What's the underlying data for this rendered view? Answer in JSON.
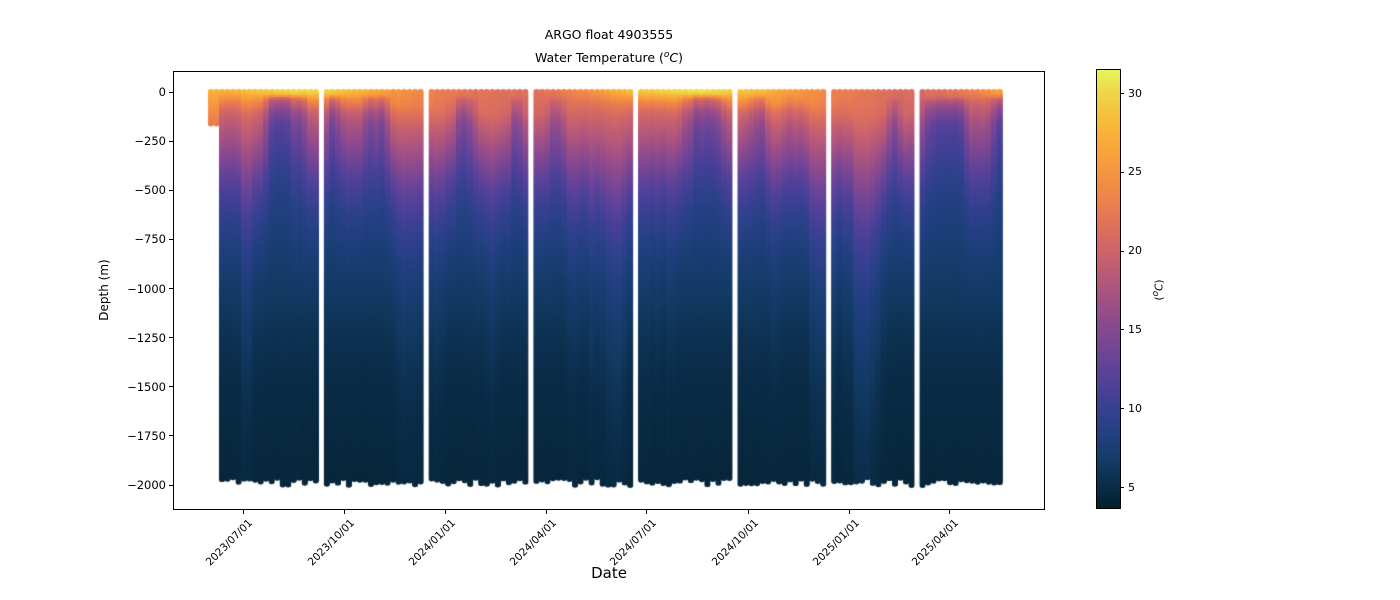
{
  "figure": {
    "title_line1": "ARGO float 4903555",
    "title_line2_prefix": "Water Temperature (",
    "title_line2_sup": "o",
    "title_line2_char": "C",
    "title_line2_suffix": ")",
    "colorbar_label_prefix": "(",
    "colorbar_label_sup": "o",
    "colorbar_label_char": "C",
    "colorbar_label_suffix": ")",
    "background": "#ffffff",
    "spine_color": "#000000",
    "text_color": "#000000"
  },
  "chart_data": {
    "type": "heatmap",
    "title": "ARGO float 4903555",
    "subtitle": "Water Temperature (°C)",
    "xlabel": "Date",
    "ylabel": "Depth (m)",
    "grid": "off",
    "legend": "none",
    "ylim": [
      -2123,
      102
    ],
    "x_tick_labels": [
      "2023/07/01",
      "2023/10/01",
      "2024/01/01",
      "2024/04/01",
      "2024/07/01",
      "2024/10/01",
      "2025/01/01",
      "2025/04/01"
    ],
    "y_tick_values": [
      0,
      -250,
      -500,
      -750,
      -1000,
      -1250,
      -1500,
      -1750,
      -2000
    ],
    "y_tick_labels": [
      "0",
      "−250",
      "−500",
      "−750",
      "−1000",
      "−1250",
      "−1500",
      "−1750",
      "−2000"
    ],
    "colorbar": {
      "label": "(°C)",
      "ticks": [
        5,
        10,
        15,
        20,
        25,
        30
      ],
      "vmin": 3.7,
      "vmax": 31.5,
      "colormap": "thermal",
      "stops": [
        [
          3.7,
          "#04202e"
        ],
        [
          5.0,
          "#0a2b45"
        ],
        [
          6.5,
          "#123a64"
        ],
        [
          8.0,
          "#1e3f7c"
        ],
        [
          9.5,
          "#30408e"
        ],
        [
          11.0,
          "#474098"
        ],
        [
          12.5,
          "#5e4299"
        ],
        [
          14.0,
          "#754695"
        ],
        [
          15.5,
          "#8c4a8e"
        ],
        [
          17.0,
          "#a35184"
        ],
        [
          18.5,
          "#b95a78"
        ],
        [
          20.0,
          "#cd646a"
        ],
        [
          21.5,
          "#de705c"
        ],
        [
          23.0,
          "#ec7f4e"
        ],
        [
          24.5,
          "#f48f43"
        ],
        [
          26.0,
          "#f8a03c"
        ],
        [
          27.5,
          "#f9b239"
        ],
        [
          29.0,
          "#f5c53e"
        ],
        [
          30.3,
          "#eeda4a"
        ],
        [
          31.5,
          "#e9f55c"
        ]
      ]
    },
    "x_start": "2023-06-02",
    "x_end": "2025-05-21",
    "profile_interval_days": 5,
    "max_profile_depth_m": 2000,
    "shallow_profiles": {
      "count": 2,
      "max_depth_m": 160
    },
    "missing_profile_dates": [
      "2023-09-10",
      "2023-12-15",
      "2024-03-16",
      "2024-06-19",
      "2024-09-17",
      "2024-12-13",
      "2025-03-04"
    ],
    "depths_m": [
      0,
      50,
      100,
      150,
      200,
      300,
      400,
      500,
      600,
      800,
      1000,
      1250,
      1500,
      2000
    ],
    "months": [
      "2023-06",
      "2023-07",
      "2023-08",
      "2023-09",
      "2023-10",
      "2023-11",
      "2023-12",
      "2024-01",
      "2024-02",
      "2024-03",
      "2024-04",
      "2024-05",
      "2024-06",
      "2024-07",
      "2024-08",
      "2024-09",
      "2024-10",
      "2024-11",
      "2024-12",
      "2025-01",
      "2025-02",
      "2025-03",
      "2025-04",
      "2025-05"
    ],
    "temperature_grid": [
      [
        27.0,
        28.5,
        30.0,
        29.5,
        27.5,
        25.0,
        23.5,
        22.0,
        21.5,
        21.5,
        22.5,
        25.0,
        28.0,
        29.5,
        30.5,
        29.5,
        27.5,
        25.5,
        23.5,
        22.0,
        21.0,
        21.0,
        22.5,
        25.5
      ],
      [
        23.5,
        24.0,
        24.5,
        25.0,
        25.0,
        24.0,
        23.0,
        21.8,
        21.3,
        21.2,
        21.5,
        22.0,
        23.0,
        24.0,
        24.5,
        25.0,
        25.0,
        24.5,
        23.0,
        21.8,
        20.8,
        20.6,
        21.0,
        22.0
      ],
      [
        20.8,
        20.8,
        21.0,
        21.2,
        21.5,
        21.6,
        21.6,
        21.3,
        21.0,
        20.8,
        20.6,
        20.5,
        20.6,
        20.8,
        21.0,
        21.2,
        21.5,
        21.6,
        21.4,
        21.2,
        20.6,
        20.3,
        20.2,
        20.3
      ],
      [
        19.5,
        19.4,
        19.4,
        19.5,
        19.6,
        19.7,
        19.8,
        19.8,
        19.7,
        19.5,
        19.3,
        19.2,
        19.3,
        19.4,
        19.5,
        19.6,
        19.7,
        19.8,
        19.8,
        19.7,
        19.4,
        19.2,
        19.1,
        19.2
      ],
      [
        18.3,
        18.2,
        18.2,
        18.3,
        18.4,
        18.5,
        18.5,
        18.5,
        18.4,
        18.3,
        18.2,
        18.1,
        18.2,
        18.2,
        18.3,
        18.4,
        18.4,
        18.5,
        18.5,
        18.4,
        18.2,
        18.1,
        18.0,
        18.1
      ],
      [
        16.0,
        15.9,
        15.9,
        16.0,
        16.0,
        16.1,
        16.1,
        16.0,
        15.9,
        15.9,
        15.8,
        15.8,
        15.9,
        15.9,
        16.0,
        16.0,
        16.0,
        16.1,
        16.0,
        15.9,
        15.8,
        15.8,
        15.7,
        15.8
      ],
      [
        13.5,
        13.5,
        13.5,
        13.5,
        13.5,
        13.5,
        13.5,
        13.5,
        13.5,
        13.5,
        13.5,
        13.5,
        13.5,
        13.5,
        13.5,
        13.5,
        13.5,
        13.5,
        13.5,
        13.5,
        13.5,
        13.5,
        13.5,
        13.5
      ],
      [
        11.5,
        11.5,
        11.5,
        11.5,
        11.5,
        11.5,
        11.5,
        11.5,
        11.5,
        11.5,
        11.5,
        11.5,
        11.5,
        11.5,
        11.5,
        11.5,
        11.5,
        11.5,
        11.5,
        11.5,
        11.5,
        11.5,
        11.5,
        11.5
      ],
      [
        10.0,
        10.0,
        10.0,
        10.0,
        10.0,
        10.0,
        10.0,
        10.0,
        10.0,
        10.0,
        10.0,
        10.0,
        10.0,
        10.0,
        10.0,
        10.0,
        10.0,
        10.0,
        10.0,
        10.0,
        10.0,
        10.0,
        10.0,
        10.0
      ],
      [
        8.0,
        8.0,
        8.0,
        8.0,
        8.0,
        8.0,
        8.0,
        8.0,
        8.0,
        8.0,
        8.0,
        8.0,
        8.0,
        8.0,
        8.0,
        8.0,
        8.0,
        8.0,
        8.0,
        8.0,
        8.0,
        8.0,
        8.0,
        8.0
      ],
      [
        6.7,
        6.7,
        6.7,
        6.7,
        6.7,
        6.7,
        6.7,
        6.7,
        6.7,
        6.7,
        6.7,
        6.7,
        6.7,
        6.7,
        6.7,
        6.7,
        6.7,
        6.7,
        6.7,
        6.7,
        6.7,
        6.7,
        6.7,
        6.7
      ],
      [
        5.6,
        5.6,
        5.6,
        5.6,
        5.6,
        5.6,
        5.6,
        5.6,
        5.6,
        5.6,
        5.6,
        5.6,
        5.6,
        5.6,
        5.6,
        5.6,
        5.6,
        5.6,
        5.6,
        5.6,
        5.6,
        5.6,
        5.6,
        5.6
      ],
      [
        5.0,
        5.0,
        5.0,
        5.0,
        5.0,
        5.0,
        5.0,
        5.0,
        5.0,
        5.0,
        5.0,
        5.0,
        5.0,
        5.0,
        5.0,
        5.0,
        5.0,
        5.0,
        5.0,
        5.0,
        5.0,
        5.0,
        5.0,
        5.0
      ],
      [
        4.4,
        4.4,
        4.4,
        4.4,
        4.4,
        4.4,
        4.4,
        4.4,
        4.4,
        4.4,
        4.4,
        4.4,
        4.4,
        4.4,
        4.4,
        4.4,
        4.4,
        4.4,
        4.4,
        4.4,
        4.4,
        4.4,
        4.4,
        4.4
      ]
    ],
    "cold_profile_temps": [
      23.0,
      17.5,
      14.5,
      12.5,
      11.5,
      10.5,
      9.5,
      8.8,
      8.2,
      7.3,
      6.5,
      5.6,
      5.0,
      4.4
    ],
    "eddy_events": [
      {
        "date": "2023-07-04",
        "amp": -0.3,
        "width_days": 6
      },
      {
        "date": "2023-07-26",
        "amp": 0.6,
        "width_days": 6
      },
      {
        "date": "2023-08-06",
        "amp": 0.95,
        "width_days": 7
      },
      {
        "date": "2023-08-21",
        "amp": 0.6,
        "width_days": 5
      },
      {
        "date": "2023-09-21",
        "amp": 0.65,
        "width_days": 6
      },
      {
        "date": "2023-10-26",
        "amp": 0.6,
        "width_days": 7
      },
      {
        "date": "2023-11-06",
        "amp": 0.45,
        "width_days": 5
      },
      {
        "date": "2024-01-16",
        "amp": 0.6,
        "width_days": 6
      },
      {
        "date": "2024-02-11",
        "amp": -0.35,
        "width_days": 8
      },
      {
        "date": "2024-03-06",
        "amp": 0.55,
        "width_days": 6
      },
      {
        "date": "2024-04-11",
        "amp": 0.5,
        "width_days": 6
      },
      {
        "date": "2024-06-06",
        "amp": -0.3,
        "width_days": 7
      },
      {
        "date": "2024-08-16",
        "amp": 0.7,
        "width_days": 8
      },
      {
        "date": "2024-09-02",
        "amp": 0.75,
        "width_days": 7
      },
      {
        "date": "2024-10-11",
        "amp": 0.55,
        "width_days": 6
      },
      {
        "date": "2024-12-02",
        "amp": -0.3,
        "width_days": 6
      },
      {
        "date": "2025-01-11",
        "amp": -0.45,
        "width_days": 8
      },
      {
        "date": "2025-02-11",
        "amp": 0.6,
        "width_days": 6
      },
      {
        "date": "2025-03-16",
        "amp": 0.8,
        "width_days": 7
      },
      {
        "date": "2025-03-31",
        "amp": 0.95,
        "width_days": 7
      },
      {
        "date": "2025-04-11",
        "amp": 0.65,
        "width_days": 5
      },
      {
        "date": "2025-05-19",
        "amp": 0.85,
        "width_days": 5
      }
    ]
  }
}
